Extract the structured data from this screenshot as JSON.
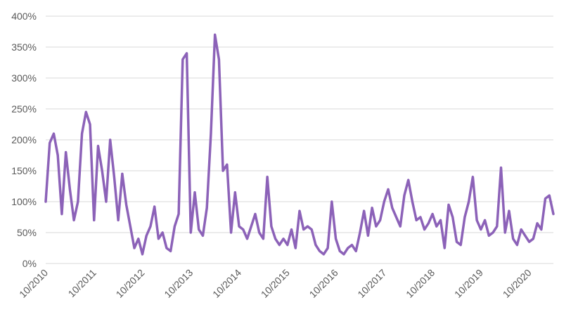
{
  "chart_data": {
    "type": "line",
    "title": "",
    "xlabel": "",
    "ylabel": "",
    "ylim": [
      0,
      400
    ],
    "y_ticks": [
      "0%",
      "50%",
      "100%",
      "150%",
      "200%",
      "250%",
      "300%",
      "350%",
      "400%"
    ],
    "x_ticks": [
      "10/2010",
      "10/2011",
      "10/2012",
      "10/2013",
      "10/2014",
      "10/2015",
      "10/2016",
      "10/2017",
      "10/2018",
      "10/2019",
      "10/2020"
    ],
    "grid": true,
    "legend": "none",
    "line_color": "#8c62b8",
    "series": [
      {
        "values_pct_by_date": [
          [
            "2010-10",
            100
          ],
          [
            "2010-11",
            195
          ],
          [
            "2010-12",
            210
          ],
          [
            "2011-01",
            175
          ],
          [
            "2011-02",
            80
          ],
          [
            "2011-03",
            180
          ],
          [
            "2011-04",
            120
          ],
          [
            "2011-05",
            70
          ],
          [
            "2011-06",
            100
          ],
          [
            "2011-07",
            210
          ],
          [
            "2011-08",
            245
          ],
          [
            "2011-09",
            225
          ],
          [
            "2011-10",
            70
          ],
          [
            "2011-11",
            190
          ],
          [
            "2011-12",
            150
          ],
          [
            "2012-01",
            100
          ],
          [
            "2012-02",
            200
          ],
          [
            "2012-03",
            140
          ],
          [
            "2012-04",
            70
          ],
          [
            "2012-05",
            145
          ],
          [
            "2012-06",
            95
          ],
          [
            "2012-07",
            60
          ],
          [
            "2012-08",
            25
          ],
          [
            "2012-09",
            40
          ],
          [
            "2012-10",
            15
          ],
          [
            "2012-11",
            45
          ],
          [
            "2012-12",
            60
          ],
          [
            "2013-01",
            92
          ],
          [
            "2013-02",
            40
          ],
          [
            "2013-03",
            50
          ],
          [
            "2013-04",
            25
          ],
          [
            "2013-05",
            20
          ],
          [
            "2013-06",
            60
          ],
          [
            "2013-07",
            80
          ],
          [
            "2013-08",
            330
          ],
          [
            "2013-09",
            340
          ],
          [
            "2013-10",
            50
          ],
          [
            "2013-11",
            115
          ],
          [
            "2013-12",
            55
          ],
          [
            "2014-01",
            45
          ],
          [
            "2014-02",
            90
          ],
          [
            "2014-03",
            210
          ],
          [
            "2014-04",
            370
          ],
          [
            "2014-05",
            330
          ],
          [
            "2014-06",
            150
          ],
          [
            "2014-07",
            160
          ],
          [
            "2014-08",
            50
          ],
          [
            "2014-09",
            115
          ],
          [
            "2014-10",
            60
          ],
          [
            "2014-11",
            55
          ],
          [
            "2014-12",
            40
          ],
          [
            "2015-01",
            60
          ],
          [
            "2015-02",
            80
          ],
          [
            "2015-03",
            50
          ],
          [
            "2015-04",
            40
          ],
          [
            "2015-05",
            140
          ],
          [
            "2015-06",
            60
          ],
          [
            "2015-07",
            40
          ],
          [
            "2015-08",
            30
          ],
          [
            "2015-09",
            40
          ],
          [
            "2015-10",
            30
          ],
          [
            "2015-11",
            55
          ],
          [
            "2015-12",
            25
          ],
          [
            "2016-01",
            85
          ],
          [
            "2016-02",
            55
          ],
          [
            "2016-03",
            60
          ],
          [
            "2016-04",
            55
          ],
          [
            "2016-05",
            30
          ],
          [
            "2016-06",
            20
          ],
          [
            "2016-07",
            15
          ],
          [
            "2016-08",
            25
          ],
          [
            "2016-09",
            100
          ],
          [
            "2016-10",
            40
          ],
          [
            "2016-11",
            20
          ],
          [
            "2016-12",
            15
          ],
          [
            "2017-01",
            25
          ],
          [
            "2017-02",
            30
          ],
          [
            "2017-03",
            20
          ],
          [
            "2017-04",
            50
          ],
          [
            "2017-05",
            85
          ],
          [
            "2017-06",
            45
          ],
          [
            "2017-07",
            90
          ],
          [
            "2017-08",
            60
          ],
          [
            "2017-09",
            70
          ],
          [
            "2017-10",
            100
          ],
          [
            "2017-11",
            120
          ],
          [
            "2017-12",
            90
          ],
          [
            "2018-01",
            75
          ],
          [
            "2018-02",
            60
          ],
          [
            "2018-03",
            110
          ],
          [
            "2018-04",
            135
          ],
          [
            "2018-05",
            100
          ],
          [
            "2018-06",
            70
          ],
          [
            "2018-07",
            75
          ],
          [
            "2018-08",
            55
          ],
          [
            "2018-09",
            65
          ],
          [
            "2018-10",
            80
          ],
          [
            "2018-11",
            60
          ],
          [
            "2018-12",
            70
          ],
          [
            "2019-01",
            25
          ],
          [
            "2019-02",
            95
          ],
          [
            "2019-03",
            75
          ],
          [
            "2019-04",
            35
          ],
          [
            "2019-05",
            30
          ],
          [
            "2019-06",
            75
          ],
          [
            "2019-07",
            100
          ],
          [
            "2019-08",
            140
          ],
          [
            "2019-09",
            70
          ],
          [
            "2019-10",
            55
          ],
          [
            "2019-11",
            70
          ],
          [
            "2019-12",
            45
          ],
          [
            "2020-01",
            50
          ],
          [
            "2020-02",
            60
          ],
          [
            "2020-03",
            155
          ],
          [
            "2020-04",
            50
          ],
          [
            "2020-05",
            85
          ],
          [
            "2020-06",
            40
          ],
          [
            "2020-07",
            30
          ],
          [
            "2020-08",
            55
          ],
          [
            "2020-09",
            45
          ],
          [
            "2020-10",
            35
          ],
          [
            "2020-11",
            40
          ],
          [
            "2020-12",
            65
          ],
          [
            "2021-01",
            55
          ],
          [
            "2021-02",
            105
          ],
          [
            "2021-03",
            110
          ],
          [
            "2021-04",
            80
          ]
        ]
      }
    ]
  }
}
